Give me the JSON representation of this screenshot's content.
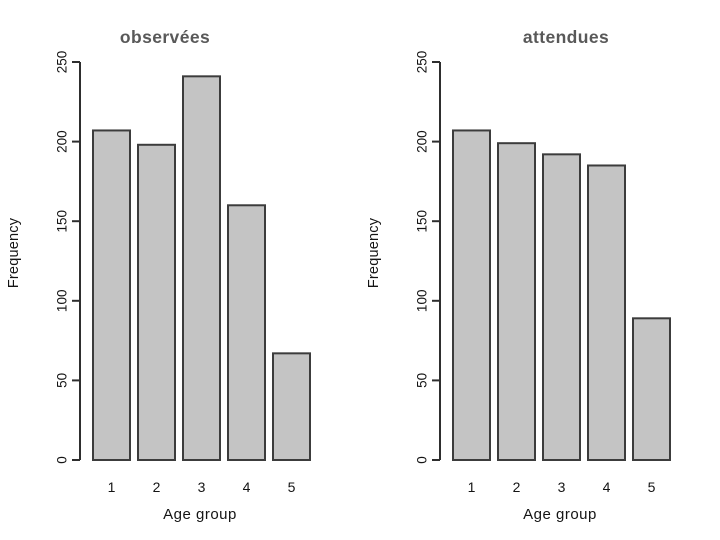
{
  "slide": {
    "background": "#ffffff"
  },
  "chart_data": [
    {
      "type": "bar",
      "title": "observées",
      "categories": [
        "1",
        "2",
        "3",
        "4",
        "5"
      ],
      "values": [
        207,
        198,
        241,
        160,
        67
      ],
      "xlabel": "Age group",
      "ylabel": "Frequency",
      "ylim": [
        0,
        250
      ],
      "yticks": [
        0,
        50,
        100,
        150,
        200,
        250
      ],
      "grid": false,
      "legend": "none",
      "bar_fill": "#c4c4c4",
      "bar_stroke": "#3c3c3c",
      "title_color": "#595959"
    },
    {
      "type": "bar",
      "title": "attendues",
      "categories": [
        "1",
        "2",
        "3",
        "4",
        "5"
      ],
      "values": [
        207,
        199,
        192,
        185,
        89
      ],
      "xlabel": "Age group",
      "ylabel": "Frequency",
      "ylim": [
        0,
        250
      ],
      "yticks": [
        0,
        50,
        100,
        150,
        200,
        250
      ],
      "grid": false,
      "legend": "none",
      "bar_fill": "#c4c4c4",
      "bar_stroke": "#3c3c3c",
      "title_color": "#595959"
    }
  ]
}
